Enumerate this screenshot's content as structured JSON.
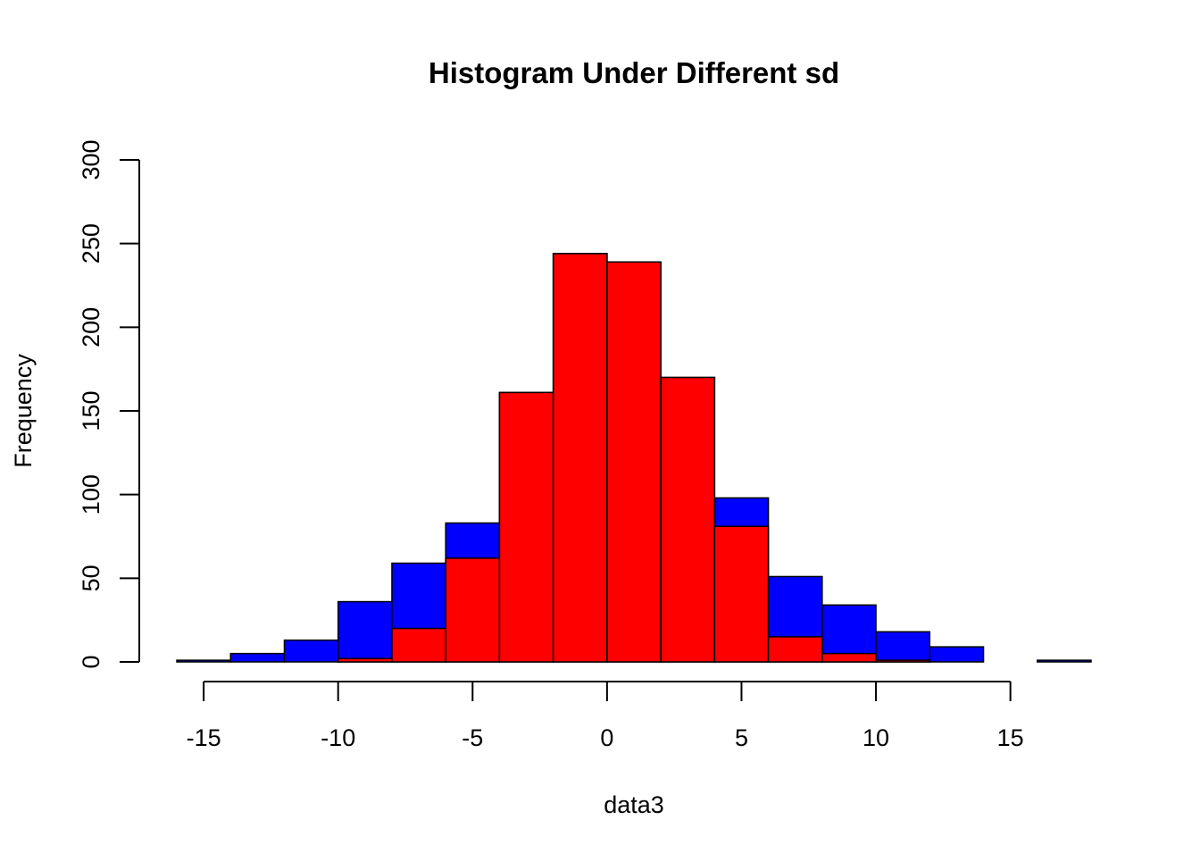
{
  "chart_data": {
    "type": "bar",
    "title": "Histogram Under Different sd",
    "xlabel": "data3",
    "ylabel": "Frequency",
    "xlim": [
      -16,
      18
    ],
    "ylim": [
      0,
      300
    ],
    "x_ticks": [
      -15,
      -10,
      -5,
      0,
      5,
      10,
      15
    ],
    "y_ticks": [
      0,
      50,
      100,
      150,
      200,
      250,
      300
    ],
    "bin_width": 2,
    "grid": false,
    "legend": "none",
    "series": [
      {
        "color": "#0000FF",
        "bins": [
          {
            "start": -16,
            "value": 1
          },
          {
            "start": -14,
            "value": 5
          },
          {
            "start": -12,
            "value": 13
          },
          {
            "start": -10,
            "value": 36
          },
          {
            "start": -8,
            "value": 59
          },
          {
            "start": -6,
            "value": 83
          },
          {
            "start": -4,
            "value": 161
          },
          {
            "start": -2,
            "value": 244
          },
          {
            "start": 0,
            "value": 239
          },
          {
            "start": 2,
            "value": 170
          },
          {
            "start": 4,
            "value": 98
          },
          {
            "start": 6,
            "value": 51
          },
          {
            "start": 8,
            "value": 34
          },
          {
            "start": 10,
            "value": 18
          },
          {
            "start": 12,
            "value": 9
          },
          {
            "start": 14,
            "value": 0
          },
          {
            "start": 16,
            "value": 1
          }
        ]
      },
      {
        "color": "#FF0000",
        "bins": [
          {
            "start": -10,
            "value": 2
          },
          {
            "start": -8,
            "value": 20
          },
          {
            "start": -6,
            "value": 62
          },
          {
            "start": -4,
            "value": 161
          },
          {
            "start": -2,
            "value": 244
          },
          {
            "start": 0,
            "value": 239
          },
          {
            "start": 2,
            "value": 170
          },
          {
            "start": 4,
            "value": 81
          },
          {
            "start": 6,
            "value": 15
          },
          {
            "start": 8,
            "value": 5
          },
          {
            "start": 10,
            "value": 1
          }
        ]
      }
    ]
  }
}
